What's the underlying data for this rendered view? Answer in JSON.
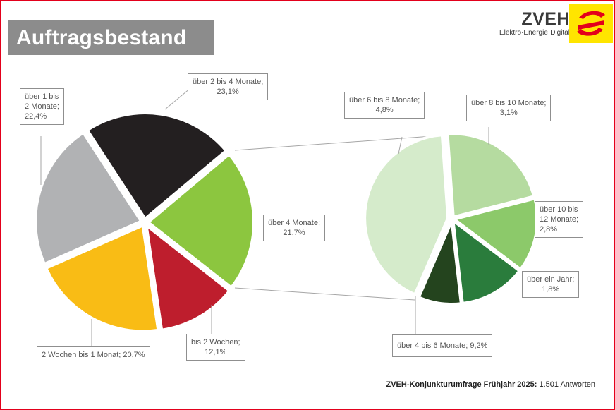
{
  "header": {
    "title": "Auftragsbestand"
  },
  "logo": {
    "name": "ZVEH",
    "tagline": "Elektro·Energie·Digital",
    "colors": {
      "yellow": "#ffe500",
      "red": "#e3001b"
    }
  },
  "footer": {
    "survey": "ZVEH-Konjunkturumfrage Frühjahr 2025:",
    "responses": "1.501 Antworten"
  },
  "chart_data": [
    {
      "type": "pie",
      "title": "",
      "slices": [
        {
          "label": "über 4 Monate",
          "value": 21.7,
          "value_label": "21,7%",
          "color": "#8cc63f"
        },
        {
          "label": "bis 2 Wochen",
          "value": 12.1,
          "value_label": "12,1%",
          "color": "#be1e2d"
        },
        {
          "label": "2 Wochen bis 1 Monat",
          "value": 20.7,
          "value_label": "20,7%",
          "color": "#f9bc15"
        },
        {
          "label": "über 1 bis 2 Monate",
          "value": 22.4,
          "value_label": "22,4%",
          "color": "#b1b2b4"
        },
        {
          "label": "über 2 bis 4 Monate",
          "value": 23.1,
          "value_label": "23,1%",
          "color": "#231f20"
        }
      ]
    },
    {
      "type": "pie",
      "title": "",
      "breakdown_of": "über 4 Monate",
      "slices": [
        {
          "label": "über 4 bis 6 Monate",
          "value": 9.2,
          "value_label": "9,2%",
          "color": "#d5ebcb"
        },
        {
          "label": "über 6 bis 8 Monate",
          "value": 4.8,
          "value_label": "4,8%",
          "color": "#b5dba0"
        },
        {
          "label": "über 8 bis 10 Monate",
          "value": 3.1,
          "value_label": "3,1%",
          "color": "#8cc96a"
        },
        {
          "label": "über 10 bis 12 Monate",
          "value": 2.8,
          "value_label": "2,8%",
          "color": "#2a7c3c"
        },
        {
          "label": "über ein Jahr",
          "value": 1.8,
          "value_label": "1,8%",
          "color": "#24441e"
        }
      ]
    }
  ]
}
